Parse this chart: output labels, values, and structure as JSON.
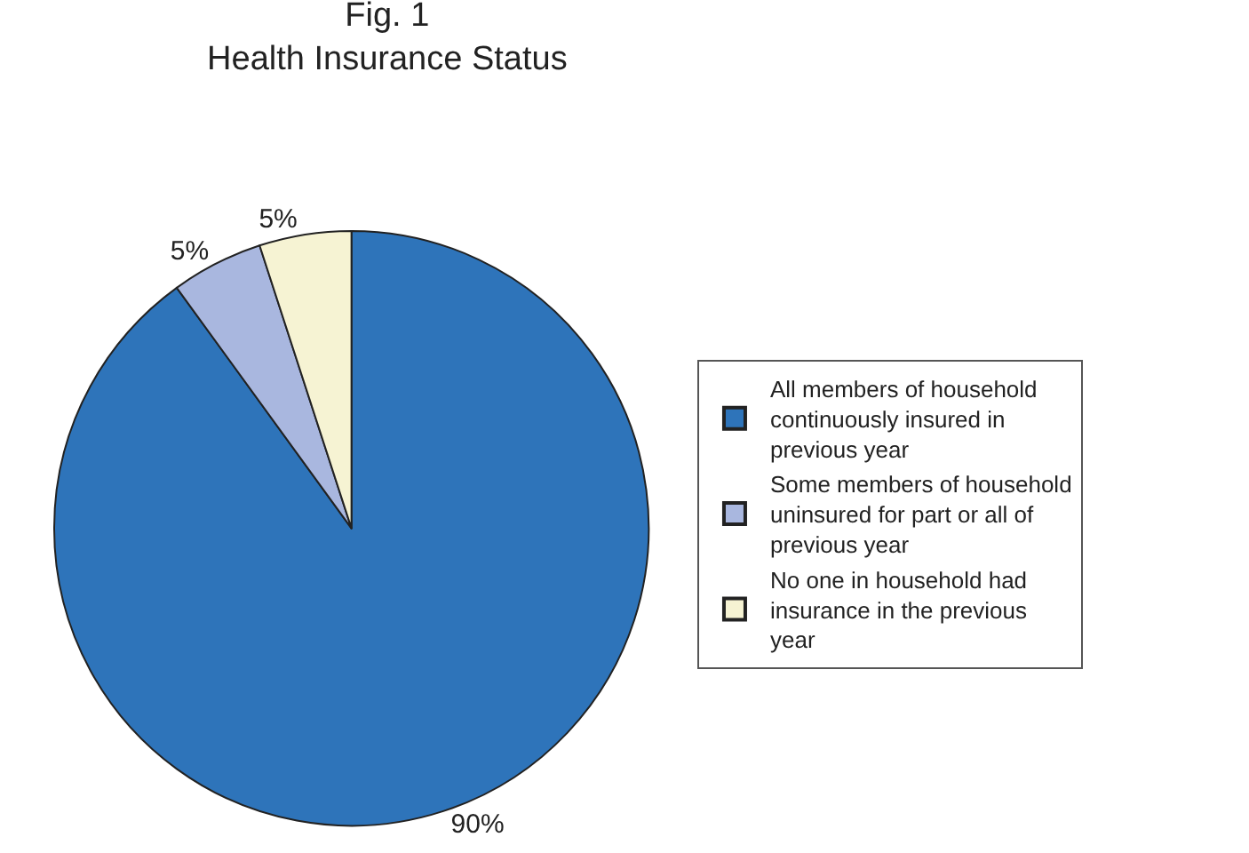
{
  "chart_data": {
    "type": "pie",
    "title": "Fig. 1",
    "subtitle": "Health Insurance Status",
    "categories": [
      "All members of household continuously insured in previous year",
      "Some members of household uninsured for part or all of previous year",
      "No one in household had insurance in the previous year"
    ],
    "values": [
      90,
      5,
      5
    ],
    "value_labels": [
      "90%",
      "5%",
      "5%"
    ],
    "colors": [
      "#2e74ba",
      "#a9b7df",
      "#f6f3d3"
    ],
    "legend": "right"
  }
}
